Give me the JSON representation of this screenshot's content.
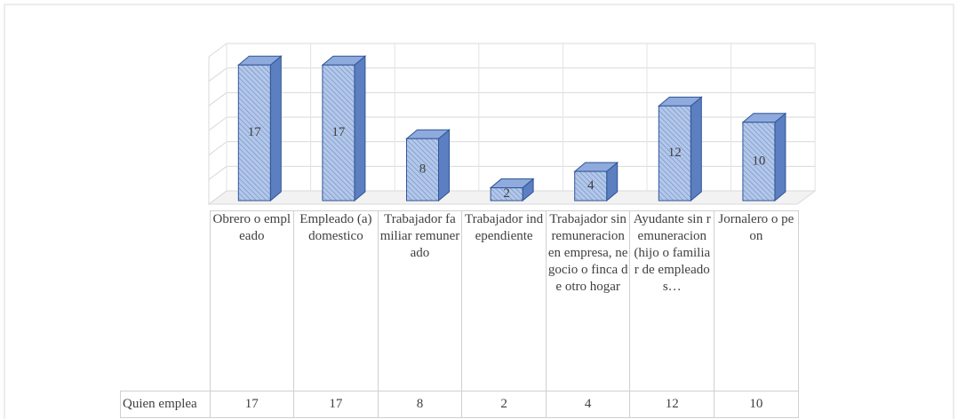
{
  "chart_data": {
    "type": "bar",
    "categories": [
      "Obrero o empleado",
      "Empleado (a) domestico",
      "Trabajador familiar remunerado",
      "Trabajador independiente",
      "Trabajador sin remuneracion en empresa, negocio o finca de otro hogar",
      "Ayudante sin remuneracion (hijo o familiar de empleados…",
      "Jornalero o peon"
    ],
    "series": [
      {
        "name": "Quien emplea",
        "color": "#b4c7e7",
        "values": [
          17,
          17,
          8,
          2,
          4,
          12,
          10
        ]
      }
    ],
    "ylim": [
      0,
      18
    ],
    "yticks": [
      0,
      3,
      6,
      9,
      12,
      15,
      18
    ],
    "grid": true
  }
}
